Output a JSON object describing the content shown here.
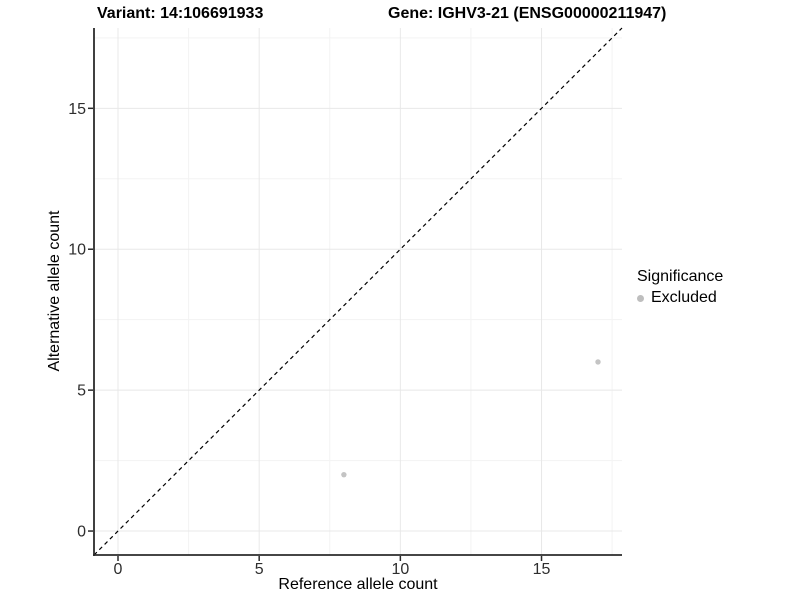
{
  "chart_data": {
    "type": "scatter",
    "title_variant": "Variant: 14:106691933",
    "title_gene": "Gene: IGHV3-21 (ENSG00000211947)",
    "xlabel": "Reference allele count",
    "ylabel": "Alternative allele count",
    "xlim": [
      -0.85,
      17.85
    ],
    "ylim": [
      -0.85,
      17.85
    ],
    "x_ticks": [
      0,
      5,
      10,
      15
    ],
    "y_ticks": [
      0,
      5,
      10,
      15
    ],
    "x_minor_ticks": [
      2.5,
      7.5,
      12.5,
      17.5
    ],
    "y_minor_ticks": [
      2.5,
      7.5,
      12.5,
      17.5
    ],
    "grid": "major and minor gridlines, light gray on white",
    "legend": {
      "title": "Significance",
      "position": "right",
      "entries": [
        {
          "label": "Excluded",
          "color": "#bebebe"
        }
      ]
    },
    "series": [
      {
        "name": "Excluded",
        "color": "#c4c4c4",
        "points": [
          {
            "x": 8,
            "y": 2
          },
          {
            "x": 17,
            "y": 6
          }
        ]
      }
    ],
    "reference_line": {
      "type": "identity (y = x)",
      "style": "dashed",
      "color": "#000000"
    },
    "style": {
      "axis_color": "#2b2b2b",
      "tick_label_color": "#2e2e2e",
      "grid_major_color": "#e8e8e8",
      "grid_minor_color": "#f3f3f3",
      "point_radius": 2.7,
      "tick_font_size": 16
    }
  }
}
